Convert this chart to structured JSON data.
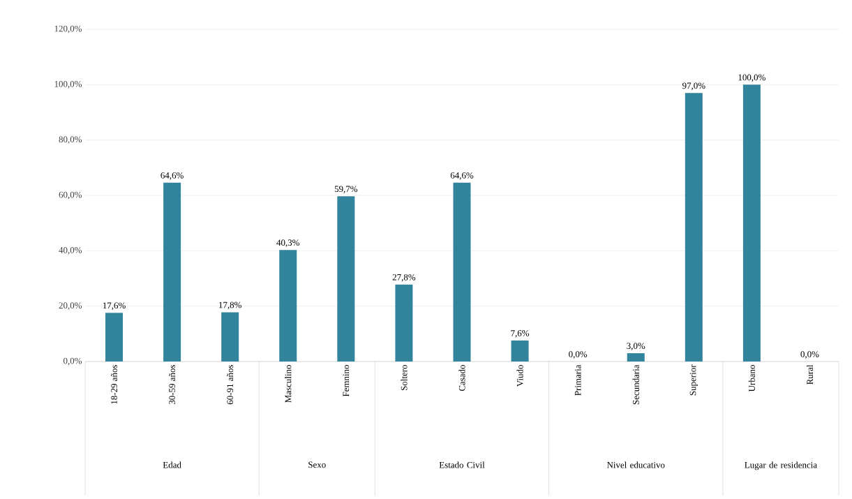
{
  "chart_data": {
    "type": "bar",
    "color": "#31849b",
    "grid": "y",
    "categories": [
      "18-29 años",
      "30-59 años",
      "60-91 años",
      "Masculino",
      "Femnino",
      "Soltero",
      "Casado",
      "Viudo",
      "Primaria",
      "Secundaria",
      "Superior",
      "Urbano",
      "Rural"
    ],
    "values": [
      17.6,
      64.6,
      17.8,
      40.3,
      59.7,
      27.8,
      64.6,
      7.6,
      0.0,
      3.0,
      97.0,
      100.0,
      0.0
    ],
    "value_labels": [
      "17,6%",
      "64,6%",
      "17,8%",
      "40,3%",
      "59,7%",
      "27,8%",
      "64,6%",
      "7,6%",
      "0,0%",
      "3,0%",
      "97,0%",
      "100,0%",
      "0,0%"
    ],
    "ylim": [
      0,
      120
    ],
    "yticks": [
      {
        "value": 0,
        "label": "0,0%"
      },
      {
        "value": 20,
        "label": "20,0%"
      },
      {
        "value": 40,
        "label": "40,0%"
      },
      {
        "value": 60,
        "label": "60,0%"
      },
      {
        "value": 80,
        "label": "80,0%"
      },
      {
        "value": 100,
        "label": "100,0%"
      },
      {
        "value": 120,
        "label": "120,0%"
      }
    ],
    "annotations": [
      "Edad",
      "Sexo",
      "Estado Civil",
      "Nivel educativo",
      "Lugar de residencia"
    ]
  }
}
